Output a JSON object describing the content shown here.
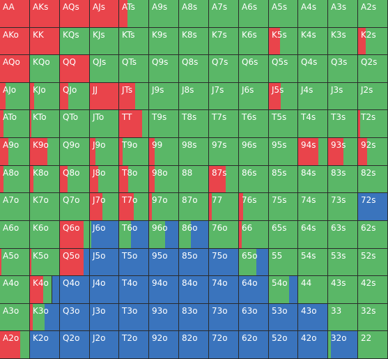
{
  "colors": {
    "raise": "#e9444b",
    "call": "#5ab767",
    "fold": "#3a74bd"
  },
  "hands": [
    [
      {
        "label": "AA",
        "mix": [
          1,
          0,
          0
        ]
      },
      {
        "label": "AKs",
        "mix": [
          1,
          0,
          0
        ]
      },
      {
        "label": "AQs",
        "mix": [
          1,
          0,
          0
        ]
      },
      {
        "label": "AJs",
        "mix": [
          1,
          0,
          0
        ]
      },
      {
        "label": "ATs",
        "mix": [
          0.28,
          0.72,
          0
        ]
      },
      {
        "label": "A9s",
        "mix": [
          0,
          1,
          0
        ]
      },
      {
        "label": "A8s",
        "mix": [
          0,
          1,
          0
        ]
      },
      {
        "label": "A7s",
        "mix": [
          0,
          1,
          0
        ]
      },
      {
        "label": "A6s",
        "mix": [
          0,
          1,
          0
        ]
      },
      {
        "label": "A5s",
        "mix": [
          0,
          1,
          0
        ]
      },
      {
        "label": "A4s",
        "mix": [
          0,
          1,
          0
        ]
      },
      {
        "label": "A3s",
        "mix": [
          0,
          1,
          0
        ]
      },
      {
        "label": "A2s",
        "mix": [
          0,
          1,
          0
        ]
      }
    ],
    [
      {
        "label": "AKo",
        "mix": [
          1,
          0,
          0
        ]
      },
      {
        "label": "KK",
        "mix": [
          1,
          0,
          0
        ]
      },
      {
        "label": "KQs",
        "mix": [
          0,
          1,
          0
        ]
      },
      {
        "label": "KJs",
        "mix": [
          0,
          1,
          0
        ]
      },
      {
        "label": "KTs",
        "mix": [
          0,
          1,
          0
        ]
      },
      {
        "label": "K9s",
        "mix": [
          0,
          1,
          0
        ]
      },
      {
        "label": "K8s",
        "mix": [
          0,
          1,
          0
        ]
      },
      {
        "label": "K7s",
        "mix": [
          0,
          1,
          0
        ]
      },
      {
        "label": "K6s",
        "mix": [
          0,
          1,
          0
        ]
      },
      {
        "label": "K5s",
        "mix": [
          0.4,
          0.6,
          0
        ]
      },
      {
        "label": "K4s",
        "mix": [
          0,
          1,
          0
        ]
      },
      {
        "label": "K3s",
        "mix": [
          0,
          1,
          0
        ]
      },
      {
        "label": "K2s",
        "mix": [
          0.25,
          0.75,
          0
        ]
      }
    ],
    [
      {
        "label": "AQo",
        "mix": [
          1,
          0,
          0
        ]
      },
      {
        "label": "KQo",
        "mix": [
          0,
          1,
          0
        ]
      },
      {
        "label": "QQ",
        "mix": [
          1,
          0,
          0
        ]
      },
      {
        "label": "QJs",
        "mix": [
          0,
          1,
          0
        ]
      },
      {
        "label": "QTs",
        "mix": [
          0,
          1,
          0
        ]
      },
      {
        "label": "Q9s",
        "mix": [
          0,
          1,
          0
        ]
      },
      {
        "label": "Q8s",
        "mix": [
          0,
          1,
          0
        ]
      },
      {
        "label": "Q7s",
        "mix": [
          0,
          1,
          0
        ]
      },
      {
        "label": "Q6s",
        "mix": [
          0,
          1,
          0
        ]
      },
      {
        "label": "Q5s",
        "mix": [
          0,
          1,
          0
        ]
      },
      {
        "label": "Q4s",
        "mix": [
          0,
          1,
          0
        ]
      },
      {
        "label": "Q3s",
        "mix": [
          0,
          1,
          0
        ]
      },
      {
        "label": "Q2s",
        "mix": [
          0,
          1,
          0
        ]
      }
    ],
    [
      {
        "label": "AJo",
        "mix": [
          0.2,
          0.8,
          0
        ]
      },
      {
        "label": "KJo",
        "mix": [
          0.15,
          0.85,
          0
        ]
      },
      {
        "label": "QJo",
        "mix": [
          0.28,
          0.72,
          0
        ]
      },
      {
        "label": "JJ",
        "mix": [
          1,
          0,
          0
        ]
      },
      {
        "label": "JTs",
        "mix": [
          0.55,
          0.45,
          0
        ]
      },
      {
        "label": "J9s",
        "mix": [
          0,
          1,
          0
        ]
      },
      {
        "label": "J8s",
        "mix": [
          0,
          1,
          0
        ]
      },
      {
        "label": "J7s",
        "mix": [
          0,
          1,
          0
        ]
      },
      {
        "label": "J6s",
        "mix": [
          0,
          1,
          0
        ]
      },
      {
        "label": "J5s",
        "mix": [
          0.42,
          0.58,
          0
        ]
      },
      {
        "label": "J4s",
        "mix": [
          0,
          1,
          0
        ]
      },
      {
        "label": "J3s",
        "mix": [
          0,
          1,
          0
        ]
      },
      {
        "label": "J2s",
        "mix": [
          0,
          1,
          0
        ]
      }
    ],
    [
      {
        "label": "ATo",
        "mix": [
          0.12,
          0.88,
          0
        ]
      },
      {
        "label": "KTo",
        "mix": [
          0.05,
          0.95,
          0
        ]
      },
      {
        "label": "QTo",
        "mix": [
          0,
          1,
          0
        ]
      },
      {
        "label": "JTo",
        "mix": [
          0,
          1,
          0
        ]
      },
      {
        "label": "TT",
        "mix": [
          0.78,
          0.22,
          0
        ]
      },
      {
        "label": "T9s",
        "mix": [
          0,
          1,
          0
        ]
      },
      {
        "label": "T8s",
        "mix": [
          0,
          1,
          0
        ]
      },
      {
        "label": "T7s",
        "mix": [
          0,
          1,
          0
        ]
      },
      {
        "label": "T6s",
        "mix": [
          0,
          1,
          0
        ]
      },
      {
        "label": "T5s",
        "mix": [
          0,
          1,
          0
        ]
      },
      {
        "label": "T4s",
        "mix": [
          0,
          1,
          0
        ]
      },
      {
        "label": "T3s",
        "mix": [
          0,
          1,
          0
        ]
      },
      {
        "label": "T2s",
        "mix": [
          0.08,
          0.92,
          0
        ]
      }
    ],
    [
      {
        "label": "A9o",
        "mix": [
          0.28,
          0.72,
          0
        ]
      },
      {
        "label": "K9o",
        "mix": [
          0.6,
          0.4,
          0
        ]
      },
      {
        "label": "Q9o",
        "mix": [
          0,
          1,
          0
        ]
      },
      {
        "label": "J9o",
        "mix": [
          0.2,
          0.8,
          0
        ]
      },
      {
        "label": "T9o",
        "mix": [
          0.12,
          0.88,
          0
        ]
      },
      {
        "label": "99",
        "mix": [
          0.18,
          0.82,
          0
        ]
      },
      {
        "label": "98s",
        "mix": [
          0,
          1,
          0
        ]
      },
      {
        "label": "97s",
        "mix": [
          0,
          1,
          0
        ]
      },
      {
        "label": "96s",
        "mix": [
          0,
          1,
          0
        ]
      },
      {
        "label": "95s",
        "mix": [
          0,
          1,
          0
        ]
      },
      {
        "label": "94s",
        "mix": [
          0.7,
          0.3,
          0
        ]
      },
      {
        "label": "93s",
        "mix": [
          0.52,
          0.48,
          0
        ]
      },
      {
        "label": "92s",
        "mix": [
          0.3,
          0.7,
          0
        ]
      }
    ],
    [
      {
        "label": "A8o",
        "mix": [
          0.12,
          0.88,
          0
        ]
      },
      {
        "label": "K8o",
        "mix": [
          0.12,
          0.88,
          0
        ]
      },
      {
        "label": "Q8o",
        "mix": [
          0.25,
          0.75,
          0
        ]
      },
      {
        "label": "J8o",
        "mix": [
          0.3,
          0.7,
          0
        ]
      },
      {
        "label": "T8o",
        "mix": [
          0.3,
          0.7,
          0
        ]
      },
      {
        "label": "98o",
        "mix": [
          0.2,
          0.8,
          0
        ]
      },
      {
        "label": "88",
        "mix": [
          0,
          1,
          0
        ]
      },
      {
        "label": "87s",
        "mix": [
          0.58,
          0.42,
          0
        ]
      },
      {
        "label": "86s",
        "mix": [
          0,
          1,
          0
        ]
      },
      {
        "label": "85s",
        "mix": [
          0,
          1,
          0
        ]
      },
      {
        "label": "84s",
        "mix": [
          0,
          1,
          0
        ]
      },
      {
        "label": "83s",
        "mix": [
          0,
          1,
          0
        ]
      },
      {
        "label": "82s",
        "mix": [
          0,
          1,
          0
        ]
      }
    ],
    [
      {
        "label": "A7o",
        "mix": [
          0,
          1,
          0
        ]
      },
      {
        "label": "K7o",
        "mix": [
          0,
          1,
          0
        ]
      },
      {
        "label": "Q7o",
        "mix": [
          0,
          1,
          0
        ]
      },
      {
        "label": "J7o",
        "mix": [
          0.45,
          0.55,
          0
        ]
      },
      {
        "label": "T7o",
        "mix": [
          0.5,
          0.5,
          0
        ]
      },
      {
        "label": "97o",
        "mix": [
          0.1,
          0.9,
          0
        ]
      },
      {
        "label": "87o",
        "mix": [
          0,
          1,
          0
        ]
      },
      {
        "label": "77",
        "mix": [
          0.1,
          0.9,
          0
        ]
      },
      {
        "label": "76s",
        "mix": [
          0.15,
          0.85,
          0
        ]
      },
      {
        "label": "75s",
        "mix": [
          0,
          1,
          0
        ]
      },
      {
        "label": "74s",
        "mix": [
          0,
          1,
          0
        ]
      },
      {
        "label": "73s",
        "mix": [
          0,
          1,
          0
        ]
      },
      {
        "label": "72s",
        "mix": [
          0,
          0,
          1
        ]
      }
    ],
    [
      {
        "label": "A6o",
        "mix": [
          0,
          1,
          0
        ]
      },
      {
        "label": "K6o",
        "mix": [
          0,
          1,
          0
        ]
      },
      {
        "label": "Q6o",
        "mix": [
          0.8,
          0.2,
          0
        ]
      },
      {
        "label": "J6o",
        "mix": [
          0,
          0.05,
          0.95
        ]
      },
      {
        "label": "T6o",
        "mix": [
          0,
          0.4,
          0.6
        ]
      },
      {
        "label": "96o",
        "mix": [
          0,
          0.55,
          0.45
        ]
      },
      {
        "label": "86o",
        "mix": [
          0,
          0.4,
          0.6
        ]
      },
      {
        "label": "76o",
        "mix": [
          0,
          1,
          0
        ]
      },
      {
        "label": "66",
        "mix": [
          0.1,
          0.9,
          0
        ]
      },
      {
        "label": "65s",
        "mix": [
          0,
          1,
          0
        ]
      },
      {
        "label": "64s",
        "mix": [
          0,
          1,
          0
        ]
      },
      {
        "label": "63s",
        "mix": [
          0,
          1,
          0
        ]
      },
      {
        "label": "62s",
        "mix": [
          0,
          1,
          0
        ]
      }
    ],
    [
      {
        "label": "A5o",
        "mix": [
          0.05,
          0.95,
          0
        ]
      },
      {
        "label": "K5o",
        "mix": [
          0.05,
          0.95,
          0
        ]
      },
      {
        "label": "Q5o",
        "mix": [
          0.8,
          0,
          0.2
        ]
      },
      {
        "label": "J5o",
        "mix": [
          0,
          0,
          1
        ]
      },
      {
        "label": "T5o",
        "mix": [
          0,
          0,
          1
        ]
      },
      {
        "label": "95o",
        "mix": [
          0,
          0,
          1
        ]
      },
      {
        "label": "85o",
        "mix": [
          0,
          0,
          1
        ]
      },
      {
        "label": "75o",
        "mix": [
          0,
          0,
          1
        ]
      },
      {
        "label": "65o",
        "mix": [
          0,
          0.6,
          0.4
        ]
      },
      {
        "label": "55",
        "mix": [
          0,
          1,
          0
        ]
      },
      {
        "label": "54s",
        "mix": [
          0,
          1,
          0
        ]
      },
      {
        "label": "53s",
        "mix": [
          0,
          1,
          0
        ]
      },
      {
        "label": "52s",
        "mix": [
          0,
          1,
          0
        ]
      }
    ],
    [
      {
        "label": "A4o",
        "mix": [
          0,
          1,
          0
        ]
      },
      {
        "label": "K4o",
        "mix": [
          0.45,
          0.3,
          0.25
        ]
      },
      {
        "label": "Q4o",
        "mix": [
          0,
          0,
          1
        ]
      },
      {
        "label": "J4o",
        "mix": [
          0,
          0,
          1
        ]
      },
      {
        "label": "T4o",
        "mix": [
          0,
          0,
          1
        ]
      },
      {
        "label": "94o",
        "mix": [
          0,
          0,
          1
        ]
      },
      {
        "label": "84o",
        "mix": [
          0,
          0,
          1
        ]
      },
      {
        "label": "74o",
        "mix": [
          0,
          0,
          1
        ]
      },
      {
        "label": "64o",
        "mix": [
          0,
          0,
          1
        ]
      },
      {
        "label": "54o",
        "mix": [
          0,
          0.7,
          0.3
        ]
      },
      {
        "label": "44",
        "mix": [
          0,
          1,
          0
        ]
      },
      {
        "label": "43s",
        "mix": [
          0,
          1,
          0
        ]
      },
      {
        "label": "42s",
        "mix": [
          0,
          1,
          0
        ]
      }
    ],
    [
      {
        "label": "A3o",
        "mix": [
          0,
          1,
          0
        ]
      },
      {
        "label": "K3o",
        "mix": [
          0.1,
          0.4,
          0.5
        ]
      },
      {
        "label": "Q3o",
        "mix": [
          0,
          0,
          1
        ]
      },
      {
        "label": "J3o",
        "mix": [
          0,
          0,
          1
        ]
      },
      {
        "label": "T3o",
        "mix": [
          0,
          0,
          1
        ]
      },
      {
        "label": "93o",
        "mix": [
          0,
          0,
          1
        ]
      },
      {
        "label": "83o",
        "mix": [
          0,
          0,
          1
        ]
      },
      {
        "label": "73o",
        "mix": [
          0,
          0,
          1
        ]
      },
      {
        "label": "63o",
        "mix": [
          0,
          0,
          1
        ]
      },
      {
        "label": "53o",
        "mix": [
          0,
          0,
          1
        ]
      },
      {
        "label": "43o",
        "mix": [
          0,
          0,
          1
        ]
      },
      {
        "label": "33",
        "mix": [
          0,
          1,
          0
        ]
      },
      {
        "label": "32s",
        "mix": [
          0,
          1,
          0
        ]
      }
    ],
    [
      {
        "label": "A2o",
        "mix": [
          0.7,
          0.3,
          0
        ]
      },
      {
        "label": "K2o",
        "mix": [
          0,
          0,
          1
        ]
      },
      {
        "label": "Q2o",
        "mix": [
          0,
          0,
          1
        ]
      },
      {
        "label": "J2o",
        "mix": [
          0,
          0,
          1
        ]
      },
      {
        "label": "T2o",
        "mix": [
          0,
          0,
          1
        ]
      },
      {
        "label": "92o",
        "mix": [
          0,
          0,
          1
        ]
      },
      {
        "label": "82o",
        "mix": [
          0,
          0,
          1
        ]
      },
      {
        "label": "72o",
        "mix": [
          0,
          0,
          1
        ]
      },
      {
        "label": "62o",
        "mix": [
          0,
          0,
          1
        ]
      },
      {
        "label": "52o",
        "mix": [
          0,
          0,
          1
        ]
      },
      {
        "label": "42o",
        "mix": [
          0,
          0,
          1
        ]
      },
      {
        "label": "32o",
        "mix": [
          0,
          0.1,
          0.9
        ]
      },
      {
        "label": "22",
        "mix": [
          0,
          1,
          0
        ]
      }
    ]
  ]
}
